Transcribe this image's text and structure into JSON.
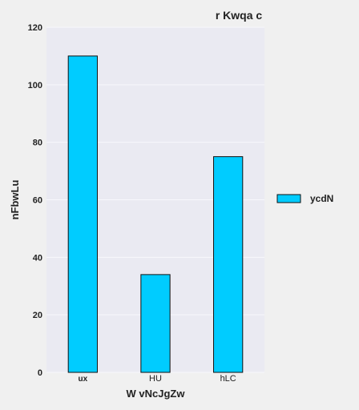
{
  "chart_data": {
    "type": "bar",
    "title": "r Kwqa c",
    "xlabel": "W vNcJgZw",
    "ylabel": "nFbwLu",
    "categories": [
      "ux",
      "HU",
      "hLC"
    ],
    "series": [
      {
        "name": "ycdN",
        "values": [
          110,
          34,
          75
        ]
      }
    ],
    "ylim": [
      0,
      120
    ],
    "yticks": [
      0,
      20,
      40,
      60,
      80,
      100,
      120
    ],
    "grid": true,
    "legend_position": "center-right"
  },
  "colors": {
    "bar_fill": "#00ccff",
    "bar_edge": "#111111",
    "plot_background": "#eaeaf2",
    "grid": "#f8f8fc",
    "figure_background": "#f0f0f0"
  }
}
